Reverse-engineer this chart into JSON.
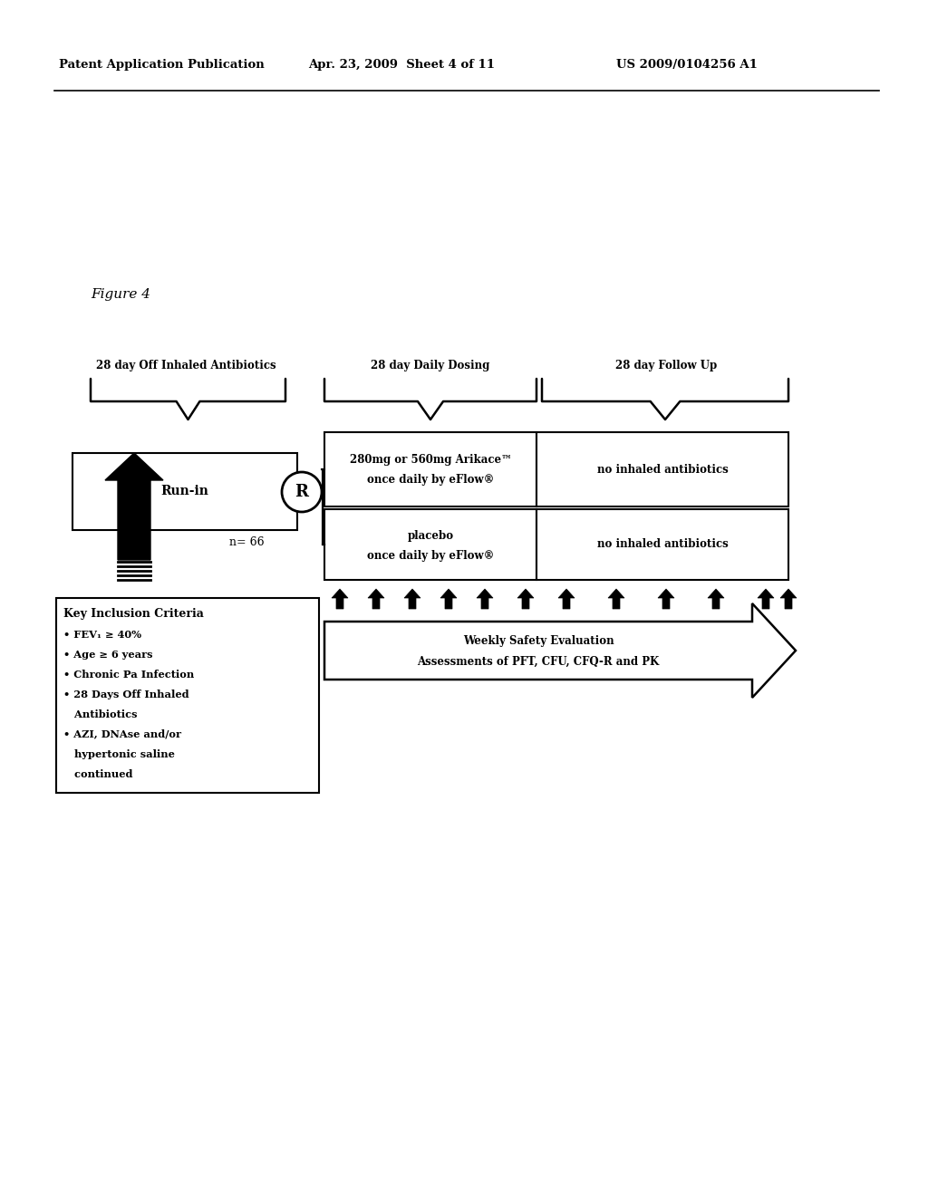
{
  "header_left": "Patent Application Publication",
  "header_mid": "Apr. 23, 2009  Sheet 4 of 11",
  "header_right": "US 2009/0104256 A1",
  "figure_label": "Figure 4",
  "brace_label_1": "28 day Off Inhaled Antibiotics",
  "brace_label_2": "28 day Daily Dosing",
  "brace_label_3": "28 day Follow Up",
  "runin_label": "Run-in",
  "n_label": "n= 66",
  "R_label": "R",
  "box1_line1": "280mg or 560mg Arikace™",
  "box1_line2": "once daily by eFlow®",
  "box2_text": "no inhaled antibiotics",
  "box3_line1": "placebo",
  "box3_line2": "once daily by eFlow®",
  "box4_text": "no inhaled antibiotics",
  "arrow_box_line1": "Weekly Safety Evaluation",
  "arrow_box_line2": "Assessments of PFT, CFU, CFQ-R and PK",
  "criteria_title": "Key Inclusion Criteria",
  "bg_color": "#ffffff"
}
